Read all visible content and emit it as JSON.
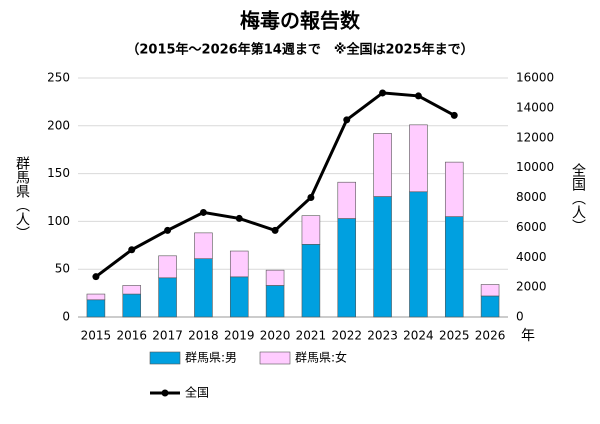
{
  "chart_data": {
    "type": "bar-line",
    "title": "梅毒の報告数",
    "subtitle": "（2015年～2026年第14週まで　※全国は2025年まで）",
    "y_label": "群馬県（人）",
    "y2_label": "全国（人）",
    "x_label": "年",
    "categories": [
      "2015",
      "2016",
      "2017",
      "2018",
      "2019",
      "2020",
      "2021",
      "2022",
      "2023",
      "2024",
      "2025",
      "2026"
    ],
    "series": [
      {
        "name": "群馬県:男",
        "type": "bar",
        "color": "#00a0e0",
        "values": [
          18,
          24,
          41,
          61,
          42,
          33,
          76,
          103,
          126,
          131,
          105,
          22
        ]
      },
      {
        "name": "群馬県:女",
        "type": "bar",
        "color": "#ffccff",
        "values": [
          6,
          9,
          23,
          27,
          27,
          16,
          30,
          38,
          66,
          70,
          57,
          12
        ]
      },
      {
        "name": "全国",
        "type": "line",
        "axis": "y2",
        "color": "#000000",
        "values": [
          2700,
          4500,
          5800,
          7000,
          6600,
          5800,
          8000,
          13200,
          15000,
          14800,
          13500,
          null
        ]
      }
    ],
    "ylim": [
      0,
      250
    ],
    "yticks": [
      0,
      50,
      100,
      150,
      200,
      250
    ],
    "y2lim": [
      0,
      16000
    ],
    "y2ticks": [
      0,
      2000,
      4000,
      6000,
      8000,
      10000,
      12000,
      14000,
      16000
    ],
    "grid": true
  }
}
